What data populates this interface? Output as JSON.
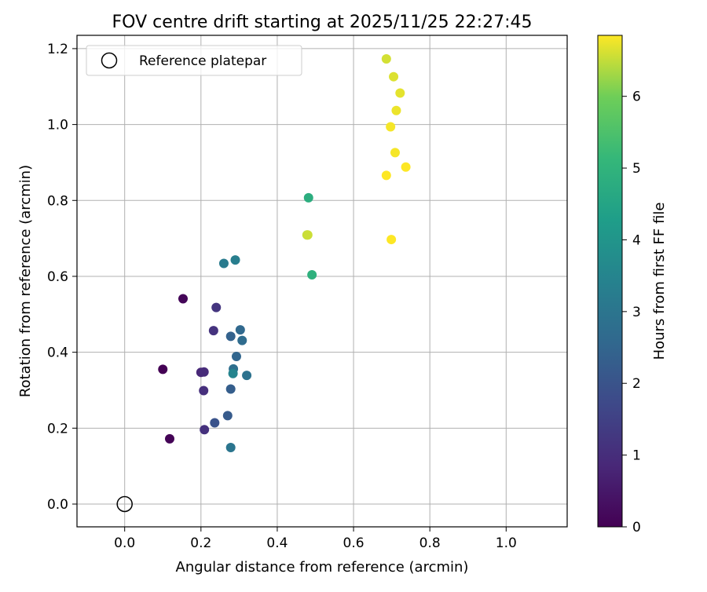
{
  "chart_data": {
    "type": "scatter",
    "title": "FOV centre drift starting at 2025/11/25 22:27:45",
    "xlabel": "Angular distance from reference (arcmin)",
    "ylabel": "Rotation from reference (arcmin)",
    "xlim": [
      -0.125,
      1.16
    ],
    "ylim": [
      -0.06,
      1.235
    ],
    "xticks": [
      0.0,
      0.2,
      0.4,
      0.6,
      0.8,
      1.0
    ],
    "xtick_labels": [
      "0.0",
      "0.2",
      "0.4",
      "0.6",
      "0.8",
      "1.0"
    ],
    "yticks": [
      0.0,
      0.2,
      0.4,
      0.6,
      0.8,
      1.0,
      1.2
    ],
    "ytick_labels": [
      "0.0",
      "0.2",
      "0.4",
      "0.6",
      "0.8",
      "1.0",
      "1.2"
    ],
    "grid": true,
    "legend": {
      "entries": [
        "Reference platepar"
      ],
      "location": "upper-left"
    },
    "reference_point": {
      "label": "Reference platepar",
      "x": 0.0,
      "y": 0.0
    },
    "colorbar": {
      "label": "Hours from first FF file",
      "colormap": "viridis",
      "min": 0,
      "max": 6.85,
      "ticks": [
        0,
        1,
        2,
        3,
        4,
        5,
        6
      ],
      "tick_labels": [
        "0",
        "1",
        "2",
        "3",
        "4",
        "5",
        "6"
      ]
    },
    "points": [
      {
        "x": 0.1,
        "y": 0.355,
        "hours": 0.0
      },
      {
        "x": 0.118,
        "y": 0.172,
        "hours": 0.05
      },
      {
        "x": 0.153,
        "y": 0.541,
        "hours": 0.1
      },
      {
        "x": 0.2,
        "y": 0.347,
        "hours": 0.85
      },
      {
        "x": 0.208,
        "y": 0.348,
        "hours": 0.95
      },
      {
        "x": 0.207,
        "y": 0.299,
        "hours": 1.05
      },
      {
        "x": 0.209,
        "y": 0.196,
        "hours": 1.1
      },
      {
        "x": 0.233,
        "y": 0.457,
        "hours": 1.15
      },
      {
        "x": 0.24,
        "y": 0.518,
        "hours": 1.2
      },
      {
        "x": 0.236,
        "y": 0.214,
        "hours": 2.0
      },
      {
        "x": 0.27,
        "y": 0.233,
        "hours": 2.2
      },
      {
        "x": 0.278,
        "y": 0.303,
        "hours": 2.3
      },
      {
        "x": 0.278,
        "y": 0.442,
        "hours": 2.4
      },
      {
        "x": 0.293,
        "y": 0.389,
        "hours": 2.5
      },
      {
        "x": 0.303,
        "y": 0.459,
        "hours": 2.6
      },
      {
        "x": 0.308,
        "y": 0.431,
        "hours": 2.7
      },
      {
        "x": 0.285,
        "y": 0.356,
        "hours": 2.8
      },
      {
        "x": 0.32,
        "y": 0.339,
        "hours": 2.9
      },
      {
        "x": 0.278,
        "y": 0.149,
        "hours": 3.0
      },
      {
        "x": 0.26,
        "y": 0.634,
        "hours": 3.2
      },
      {
        "x": 0.29,
        "y": 0.643,
        "hours": 3.3
      },
      {
        "x": 0.284,
        "y": 0.344,
        "hours": 3.5
      },
      {
        "x": 0.482,
        "y": 0.807,
        "hours": 4.8
      },
      {
        "x": 0.491,
        "y": 0.604,
        "hours": 4.9
      },
      {
        "x": 0.478,
        "y": 0.709,
        "hours": 6.5
      },
      {
        "x": 0.48,
        "y": 0.709,
        "hours": 6.55
      },
      {
        "x": 0.686,
        "y": 1.173,
        "hours": 6.6
      },
      {
        "x": 0.705,
        "y": 1.126,
        "hours": 6.65
      },
      {
        "x": 0.722,
        "y": 1.083,
        "hours": 6.7
      },
      {
        "x": 0.712,
        "y": 1.037,
        "hours": 6.75
      },
      {
        "x": 0.697,
        "y": 0.994,
        "hours": 6.8
      },
      {
        "x": 0.709,
        "y": 0.926,
        "hours": 6.8
      },
      {
        "x": 0.737,
        "y": 0.888,
        "hours": 6.85
      },
      {
        "x": 0.686,
        "y": 0.866,
        "hours": 6.85
      },
      {
        "x": 0.699,
        "y": 0.697,
        "hours": 6.85
      }
    ]
  }
}
